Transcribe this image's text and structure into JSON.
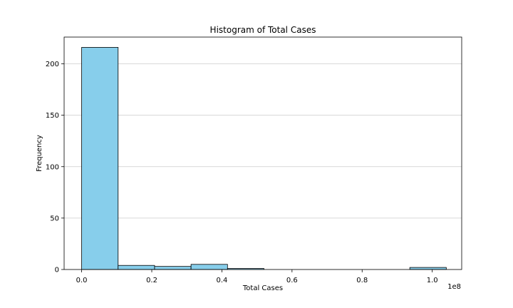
{
  "chart_data": {
    "type": "bar",
    "title": "Histogram of Total Cases",
    "xlabel": "Total Cases",
    "ylabel": "Frequency",
    "x_scale_note": "1e8",
    "xlim": [
      -0.05,
      1.084
    ],
    "ylim": [
      0,
      226
    ],
    "bar_color": "#87CEEB",
    "edge_color": "#000000",
    "grid": {
      "y": true,
      "x": false,
      "color": "#cccccc"
    },
    "bins": [
      {
        "x0": 0.0,
        "x1": 0.104,
        "count": 216
      },
      {
        "x0": 0.104,
        "x1": 0.208,
        "count": 4
      },
      {
        "x0": 0.208,
        "x1": 0.312,
        "count": 3
      },
      {
        "x0": 0.312,
        "x1": 0.416,
        "count": 5
      },
      {
        "x0": 0.416,
        "x1": 0.52,
        "count": 1
      },
      {
        "x0": 0.52,
        "x1": 0.624,
        "count": 0
      },
      {
        "x0": 0.624,
        "x1": 0.728,
        "count": 0
      },
      {
        "x0": 0.728,
        "x1": 0.832,
        "count": 0
      },
      {
        "x0": 0.832,
        "x1": 0.936,
        "count": 0
      },
      {
        "x0": 0.936,
        "x1": 1.04,
        "count": 2
      }
    ],
    "x_ticks": [
      {
        "value": 0.0,
        "label": "0.0"
      },
      {
        "value": 0.2,
        "label": "0.2"
      },
      {
        "value": 0.4,
        "label": "0.4"
      },
      {
        "value": 0.6,
        "label": "0.6"
      },
      {
        "value": 0.8,
        "label": "0.8"
      },
      {
        "value": 1.0,
        "label": "1.0"
      }
    ],
    "y_ticks": [
      {
        "value": 0,
        "label": "0"
      },
      {
        "value": 50,
        "label": "50"
      },
      {
        "value": 100,
        "label": "100"
      },
      {
        "value": 150,
        "label": "150"
      },
      {
        "value": 200,
        "label": "200"
      }
    ]
  }
}
